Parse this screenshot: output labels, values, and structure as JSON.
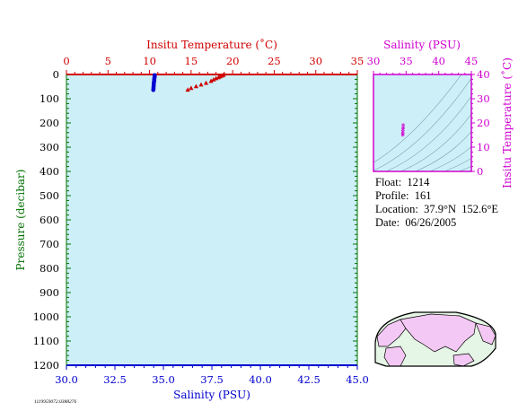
{
  "colors": {
    "plot_background": "#cdf0f8",
    "temperature": "#d00000",
    "salinity": "#0000d0",
    "ts_axis": "#d000d0",
    "pressure_axis": "#007000",
    "map_land": "#f4c8f4",
    "map_ocean": "#e6f6e6"
  },
  "chart_data": [
    {
      "type": "scatter",
      "name": "profile",
      "y_label": "Pressure (decibar)",
      "y_ticks": [
        "0",
        "100",
        "200",
        "300",
        "400",
        "500",
        "600",
        "700",
        "800",
        "900",
        "1000",
        "1100",
        "1200"
      ],
      "ylim": [
        1200,
        0
      ],
      "top_axis": {
        "label": "Insitu Temperature (˚C)",
        "ticks": [
          "0",
          "5",
          "10",
          "15",
          "20",
          "25",
          "30",
          "35"
        ],
        "range": [
          0,
          35
        ]
      },
      "bottom_axis": {
        "label": "Salinity (PSU)",
        "ticks": [
          "30.0",
          "32.5",
          "35.0",
          "37.5",
          "40.0",
          "42.5",
          "45.0"
        ],
        "range": [
          30,
          45
        ]
      },
      "series": [
        {
          "measure": "temperature",
          "marker": "triangle",
          "points": [
            {
              "value": 18.9,
              "pressure": 3
            },
            {
              "value": 18.7,
              "pressure": 6
            },
            {
              "value": 18.5,
              "pressure": 9
            },
            {
              "value": 18.3,
              "pressure": 13
            },
            {
              "value": 18.0,
              "pressure": 17
            },
            {
              "value": 17.7,
              "pressure": 22
            },
            {
              "value": 17.4,
              "pressure": 28
            },
            {
              "value": 16.8,
              "pressure": 36
            },
            {
              "value": 16.2,
              "pressure": 43
            },
            {
              "value": 15.6,
              "pressure": 50
            },
            {
              "value": 15.0,
              "pressure": 57
            },
            {
              "value": 14.6,
              "pressure": 64
            }
          ]
        },
        {
          "measure": "salinity",
          "marker": "dot",
          "points": [
            {
              "value": 34.55,
              "pressure": 3
            },
            {
              "value": 34.55,
              "pressure": 8
            },
            {
              "value": 34.54,
              "pressure": 13
            },
            {
              "value": 34.53,
              "pressure": 18
            },
            {
              "value": 34.53,
              "pressure": 23
            },
            {
              "value": 34.52,
              "pressure": 28
            },
            {
              "value": 34.51,
              "pressure": 34
            },
            {
              "value": 34.5,
              "pressure": 40
            },
            {
              "value": 34.5,
              "pressure": 46
            },
            {
              "value": 34.49,
              "pressure": 52
            },
            {
              "value": 34.49,
              "pressure": 58
            },
            {
              "value": 34.48,
              "pressure": 64
            }
          ]
        }
      ],
      "grid": false
    },
    {
      "type": "scatter",
      "name": "ts-diagram",
      "x_label": "Salinity (PSU)",
      "x_ticks": [
        "30",
        "35",
        "40",
        "45"
      ],
      "xlim": [
        30,
        45
      ],
      "y_label": "Insitu Temperature (˚C)",
      "y_ticks": [
        "0",
        "10",
        "20",
        "30",
        "40"
      ],
      "ylim": [
        0,
        40
      ],
      "points": [
        {
          "x": 34.55,
          "y": 18.9
        },
        {
          "x": 34.55,
          "y": 18.0
        },
        {
          "x": 34.53,
          "y": 17.4
        },
        {
          "x": 34.52,
          "y": 16.8
        },
        {
          "x": 34.5,
          "y": 16.2
        },
        {
          "x": 34.5,
          "y": 15.6
        },
        {
          "x": 34.49,
          "y": 15.0
        },
        {
          "x": 34.48,
          "y": 14.6
        }
      ]
    }
  ],
  "info": {
    "float": "Float:  1214",
    "profile": "Profile:  161",
    "location": "Location:  37.9°N  152.6°E",
    "date": "Date:  06/26/2005"
  },
  "footer_code": "1119959072.0388276"
}
